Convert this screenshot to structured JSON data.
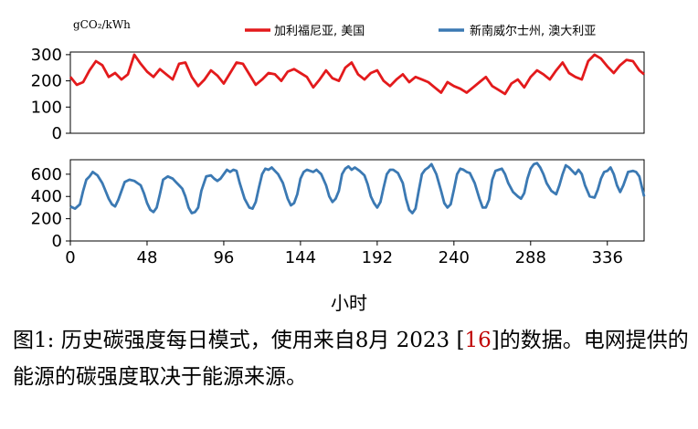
{
  "figure": {
    "unit_label": "gCO₂/kWh",
    "xlabel": "小时",
    "caption": {
      "prefix": "图1:  历史碳强度每日模式，使用来自8月 2023 [",
      "cite": "16",
      "suffix": "]的数据。电网提供的能源的碳强度取决于能源来源。"
    }
  },
  "chart_data": [
    {
      "type": "line",
      "legend": "top",
      "grid": false,
      "xlim": [
        0,
        359
      ],
      "ylim": [
        0,
        310
      ],
      "yticks": [
        0,
        100,
        200,
        300
      ],
      "xticks": [],
      "series": [
        {
          "name": "加利福尼亚, 美国",
          "color": "#e31a1c",
          "x": [
            0,
            4,
            8,
            12,
            16,
            20,
            24,
            28,
            32,
            36,
            40,
            44,
            48,
            52,
            56,
            60,
            64,
            68,
            72,
            76,
            80,
            84,
            88,
            92,
            96,
            100,
            104,
            108,
            112,
            116,
            120,
            124,
            128,
            132,
            136,
            140,
            144,
            148,
            152,
            156,
            160,
            164,
            168,
            172,
            176,
            180,
            184,
            188,
            192,
            196,
            200,
            204,
            208,
            212,
            216,
            220,
            224,
            228,
            232,
            236,
            240,
            244,
            248,
            252,
            256,
            260,
            264,
            268,
            272,
            276,
            280,
            284,
            288,
            292,
            296,
            300,
            304,
            308,
            312,
            316,
            320,
            324,
            328,
            332,
            336,
            340,
            344,
            348,
            352,
            356,
            359
          ],
          "y": [
            215,
            185,
            195,
            240,
            275,
            260,
            215,
            230,
            205,
            225,
            300,
            265,
            235,
            215,
            245,
            225,
            205,
            265,
            270,
            215,
            180,
            205,
            240,
            220,
            190,
            230,
            270,
            265,
            225,
            185,
            205,
            230,
            225,
            200,
            235,
            245,
            230,
            215,
            175,
            205,
            240,
            210,
            200,
            250,
            270,
            225,
            205,
            230,
            240,
            200,
            180,
            205,
            225,
            195,
            215,
            205,
            195,
            175,
            155,
            195,
            180,
            170,
            155,
            175,
            195,
            215,
            180,
            165,
            150,
            190,
            205,
            175,
            215,
            240,
            225,
            205,
            240,
            270,
            230,
            215,
            205,
            275,
            300,
            285,
            255,
            230,
            260,
            280,
            275,
            240,
            225
          ]
        }
      ]
    },
    {
      "type": "line",
      "legend": "top",
      "grid": false,
      "xlim": [
        0,
        359
      ],
      "ylim": [
        0,
        730
      ],
      "yticks": [
        0,
        200,
        400,
        600
      ],
      "xticks": [
        0,
        48,
        96,
        144,
        192,
        240,
        288,
        336
      ],
      "xlabel": "小时",
      "series": [
        {
          "name": "新南威尔士州, 澳大利亚",
          "color": "#3b79b3",
          "x": [
            0,
            3,
            6,
            8,
            10,
            12,
            14,
            17,
            20,
            22,
            24,
            26,
            28,
            30,
            32,
            34,
            37,
            40,
            42,
            44,
            46,
            48,
            50,
            52,
            54,
            56,
            58,
            61,
            64,
            66,
            68,
            70,
            72,
            74,
            76,
            78,
            80,
            82,
            85,
            88,
            90,
            92,
            94,
            96,
            98,
            100,
            102,
            104,
            106,
            109,
            112,
            114,
            116,
            118,
            120,
            122,
            124,
            126,
            128,
            130,
            133,
            136,
            138,
            140,
            142,
            144,
            146,
            148,
            150,
            152,
            154,
            157,
            160,
            162,
            164,
            166,
            168,
            170,
            172,
            174,
            176,
            178,
            181,
            184,
            186,
            188,
            190,
            192,
            194,
            196,
            198,
            200,
            202,
            205,
            208,
            210,
            212,
            214,
            216,
            218,
            220,
            222,
            224,
            226,
            229,
            232,
            234,
            236,
            238,
            240,
            242,
            244,
            246,
            248,
            250,
            253,
            256,
            258,
            260,
            262,
            264,
            266,
            268,
            270,
            272,
            274,
            277,
            280,
            282,
            284,
            286,
            288,
            290,
            292,
            294,
            296,
            298,
            301,
            304,
            306,
            308,
            310,
            312,
            314,
            316,
            318,
            320,
            322,
            325,
            328,
            330,
            332,
            334,
            336,
            338,
            340,
            342,
            344,
            346,
            349,
            352,
            354,
            356,
            359
          ],
          "y": [
            310,
            290,
            330,
            450,
            550,
            580,
            620,
            590,
            520,
            450,
            380,
            330,
            310,
            370,
            450,
            530,
            550,
            540,
            520,
            500,
            430,
            340,
            280,
            260,
            300,
            420,
            550,
            580,
            560,
            530,
            500,
            470,
            400,
            300,
            250,
            260,
            300,
            450,
            580,
            590,
            560,
            540,
            560,
            600,
            640,
            620,
            640,
            630,
            520,
            380,
            300,
            290,
            350,
            480,
            600,
            650,
            640,
            660,
            630,
            600,
            520,
            380,
            320,
            340,
            420,
            560,
            620,
            640,
            630,
            620,
            640,
            600,
            500,
            400,
            350,
            380,
            450,
            600,
            650,
            670,
            640,
            660,
            630,
            590,
            510,
            400,
            340,
            300,
            350,
            480,
            600,
            640,
            640,
            610,
            520,
            380,
            280,
            250,
            290,
            450,
            600,
            640,
            660,
            690,
            600,
            450,
            340,
            300,
            330,
            460,
            600,
            650,
            640,
            620,
            610,
            520,
            380,
            300,
            300,
            370,
            550,
            630,
            640,
            650,
            600,
            520,
            440,
            400,
            380,
            430,
            560,
            650,
            690,
            700,
            660,
            600,
            520,
            450,
            420,
            500,
            600,
            680,
            660,
            630,
            600,
            640,
            600,
            500,
            400,
            390,
            460,
            560,
            620,
            630,
            660,
            600,
            500,
            440,
            500,
            620,
            630,
            620,
            580,
            400
          ]
        }
      ]
    }
  ]
}
